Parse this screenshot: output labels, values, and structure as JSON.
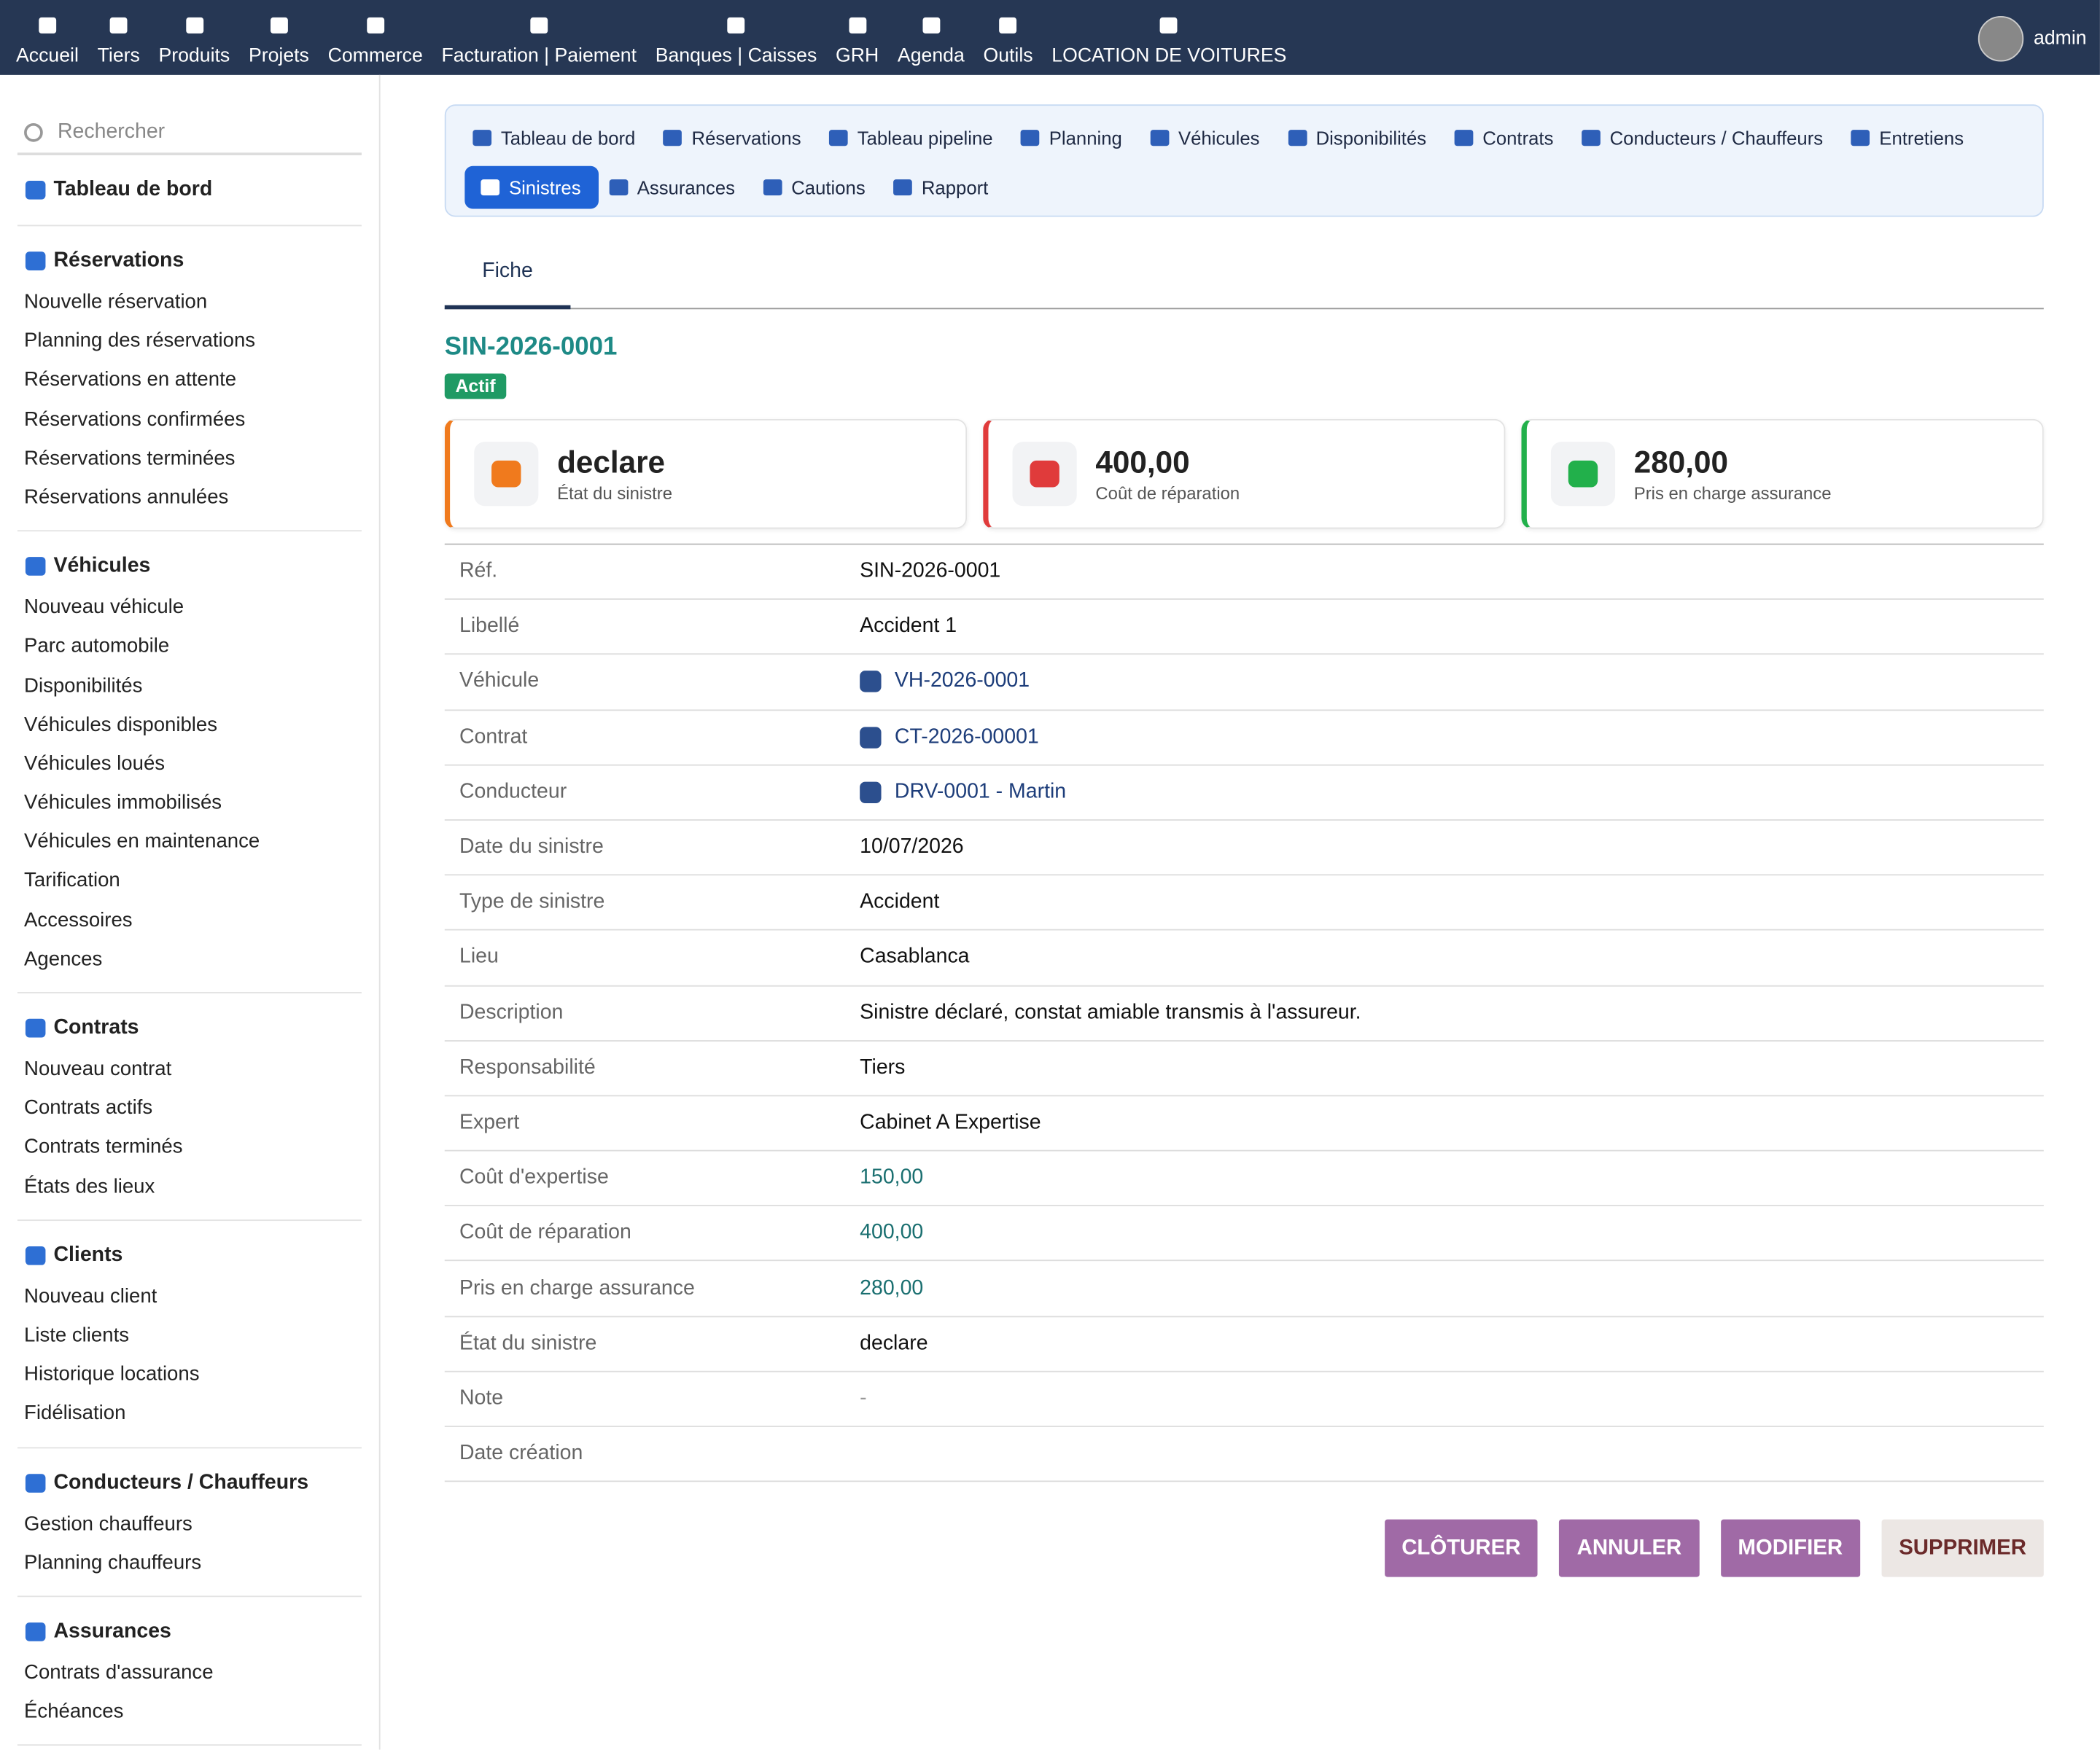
{
  "topnav": {
    "items": [
      "Accueil",
      "Tiers",
      "Produits",
      "Projets",
      "Commerce",
      "Facturation | Paiement",
      "Banques | Caisses",
      "GRH",
      "Agenda",
      "Outils",
      "LOCATION DE VOITURES"
    ],
    "user": "admin"
  },
  "sidebar": {
    "search": "Rechercher",
    "sections": [
      {
        "title": "Tableau de bord",
        "items": []
      },
      {
        "title": "Réservations",
        "items": [
          "Nouvelle réservation",
          "Planning des réservations",
          "Réservations en attente",
          "Réservations confirmées",
          "Réservations terminées",
          "Réservations annulées"
        ]
      },
      {
        "title": "Véhicules",
        "items": [
          "Nouveau véhicule",
          "Parc automobile",
          "Disponibilités",
          "Véhicules disponibles",
          "Véhicules loués",
          "Véhicules immobilisés",
          "Véhicules en maintenance",
          "Tarification",
          "Accessoires",
          "Agences"
        ]
      },
      {
        "title": "Contrats",
        "items": [
          "Nouveau contrat",
          "Contrats actifs",
          "Contrats terminés",
          "États des lieux"
        ]
      },
      {
        "title": "Clients",
        "items": [
          "Nouveau client",
          "Liste clients",
          "Historique locations",
          "Fidélisation"
        ]
      },
      {
        "title": "Conducteurs / Chauffeurs",
        "items": [
          "Gestion chauffeurs",
          "Planning chauffeurs"
        ]
      },
      {
        "title": "Assurances",
        "items": [
          "Contrats d'assurance",
          "Échéances"
        ]
      }
    ]
  },
  "subnav": {
    "tabs": [
      {
        "label": "Tableau de bord"
      },
      {
        "label": "Réservations"
      },
      {
        "label": "Tableau pipeline"
      },
      {
        "label": "Planning"
      },
      {
        "label": "Véhicules"
      },
      {
        "label": "Disponibilités"
      },
      {
        "label": "Contrats"
      },
      {
        "label": "Conducteurs / Chauffeurs"
      },
      {
        "label": "Entretiens"
      },
      {
        "label": "Sinistres",
        "active": true
      },
      {
        "label": "Assurances"
      },
      {
        "label": "Cautions"
      },
      {
        "label": "Rapport"
      }
    ]
  },
  "record": {
    "tab": "Fiche",
    "ref": "SIN-2026-0001",
    "status": "Actif",
    "cards": [
      {
        "value": "declare",
        "label": "État du sinistre",
        "color": "#f07a1d"
      },
      {
        "value": "400,00",
        "label": "Coût de réparation",
        "color": "#e03b3b"
      },
      {
        "value": "280,00",
        "label": "Pris en charge assurance",
        "color": "#22b04b"
      }
    ],
    "fields": [
      {
        "label": "Réf.",
        "value": "SIN-2026-0001"
      },
      {
        "label": "Libellé",
        "value": "Accident 1"
      },
      {
        "label": "Véhicule",
        "value": "VH-2026-0001",
        "link": true
      },
      {
        "label": "Contrat",
        "value": "CT-2026-00001",
        "link": true
      },
      {
        "label": "Conducteur",
        "value": "DRV-0001 - Martin",
        "link": true
      },
      {
        "label": "Date du sinistre",
        "value": "10/07/2026"
      },
      {
        "label": "Type de sinistre",
        "value": "Accident"
      },
      {
        "label": "Lieu",
        "value": "Casablanca"
      },
      {
        "label": "Description",
        "value": "Sinistre déclaré, constat amiable transmis à l'assureur."
      },
      {
        "label": "Responsabilité",
        "value": "Tiers"
      },
      {
        "label": "Expert",
        "value": "Cabinet A Expertise"
      },
      {
        "label": "Coût d'expertise",
        "value": "150,00",
        "amount": true
      },
      {
        "label": "Coût de réparation",
        "value": "400,00",
        "amount": true
      },
      {
        "label": "Pris en charge assurance",
        "value": "280,00",
        "amount": true
      },
      {
        "label": "État du sinistre",
        "value": "declare"
      },
      {
        "label": "Note",
        "value": "-",
        "muted": true
      },
      {
        "label": "Date création",
        "value": null
      }
    ]
  },
  "actions": [
    {
      "label": "CLÔTURER"
    },
    {
      "label": "ANNULER"
    },
    {
      "label": "MODIFIER"
    },
    {
      "label": "SUPPRIMER",
      "secondary": true
    }
  ]
}
